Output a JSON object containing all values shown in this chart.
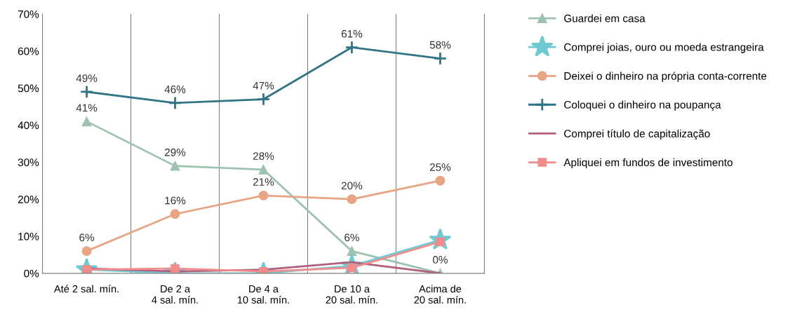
{
  "chart_data": {
    "type": "line",
    "categories": [
      "Até 2 sal. mín.",
      "De 2 a\n4 sal. mín.",
      "De 4 a\n10 sal. mín.",
      "De 10 a\n20 sal. mín.",
      "Acima de\n20 sal. mín."
    ],
    "series": [
      {
        "name": "Guardei em casa",
        "color": "#9dc3b0",
        "marker": "triangle",
        "values": [
          41,
          29,
          28,
          6,
          0
        ],
        "value_labels": [
          "41%",
          "29%",
          "28%",
          "6%",
          "0%"
        ]
      },
      {
        "name": "Comprei joias, ouro ou moeda estrangeira",
        "color": "#6dcad1",
        "marker": "star",
        "values": [
          1,
          0,
          0,
          2,
          9
        ]
      },
      {
        "name": "Deixei o dinheiro na própria conta-corrente",
        "color": "#e8a584",
        "marker": "circle",
        "values": [
          6,
          16,
          21,
          20,
          25
        ],
        "value_labels": [
          "6%",
          "16%",
          "21%",
          "20%",
          "25%"
        ]
      },
      {
        "name": "Coloquei o dinheiro na poupança",
        "color": "#2f7585",
        "marker": "cross",
        "values": [
          49,
          46,
          47,
          61,
          58
        ],
        "value_labels": [
          "49%",
          "46%",
          "47%",
          "61%",
          "58%"
        ]
      },
      {
        "name": "Comprei título de capitalização",
        "color": "#b0607e",
        "marker": "none",
        "values": [
          1.3,
          0.5,
          1,
          3,
          0
        ]
      },
      {
        "name": "Apliquei em fundos de investimento",
        "color": "#f28b8b",
        "marker": "square",
        "values": [
          1,
          1.3,
          0.5,
          1.5,
          8.5
        ]
      }
    ],
    "ylim": [
      0,
      70
    ],
    "yticks": [
      {
        "value": 0,
        "label": "0%"
      },
      {
        "value": 10,
        "label": "10%"
      },
      {
        "value": 20,
        "label": "20%"
      },
      {
        "value": 30,
        "label": "30%"
      },
      {
        "value": 40,
        "label": "40%"
      },
      {
        "value": 50,
        "label": "50%"
      },
      {
        "value": 60,
        "label": "60%"
      },
      {
        "value": 70,
        "label": "70%"
      }
    ],
    "grid": "x",
    "legend": "right"
  }
}
